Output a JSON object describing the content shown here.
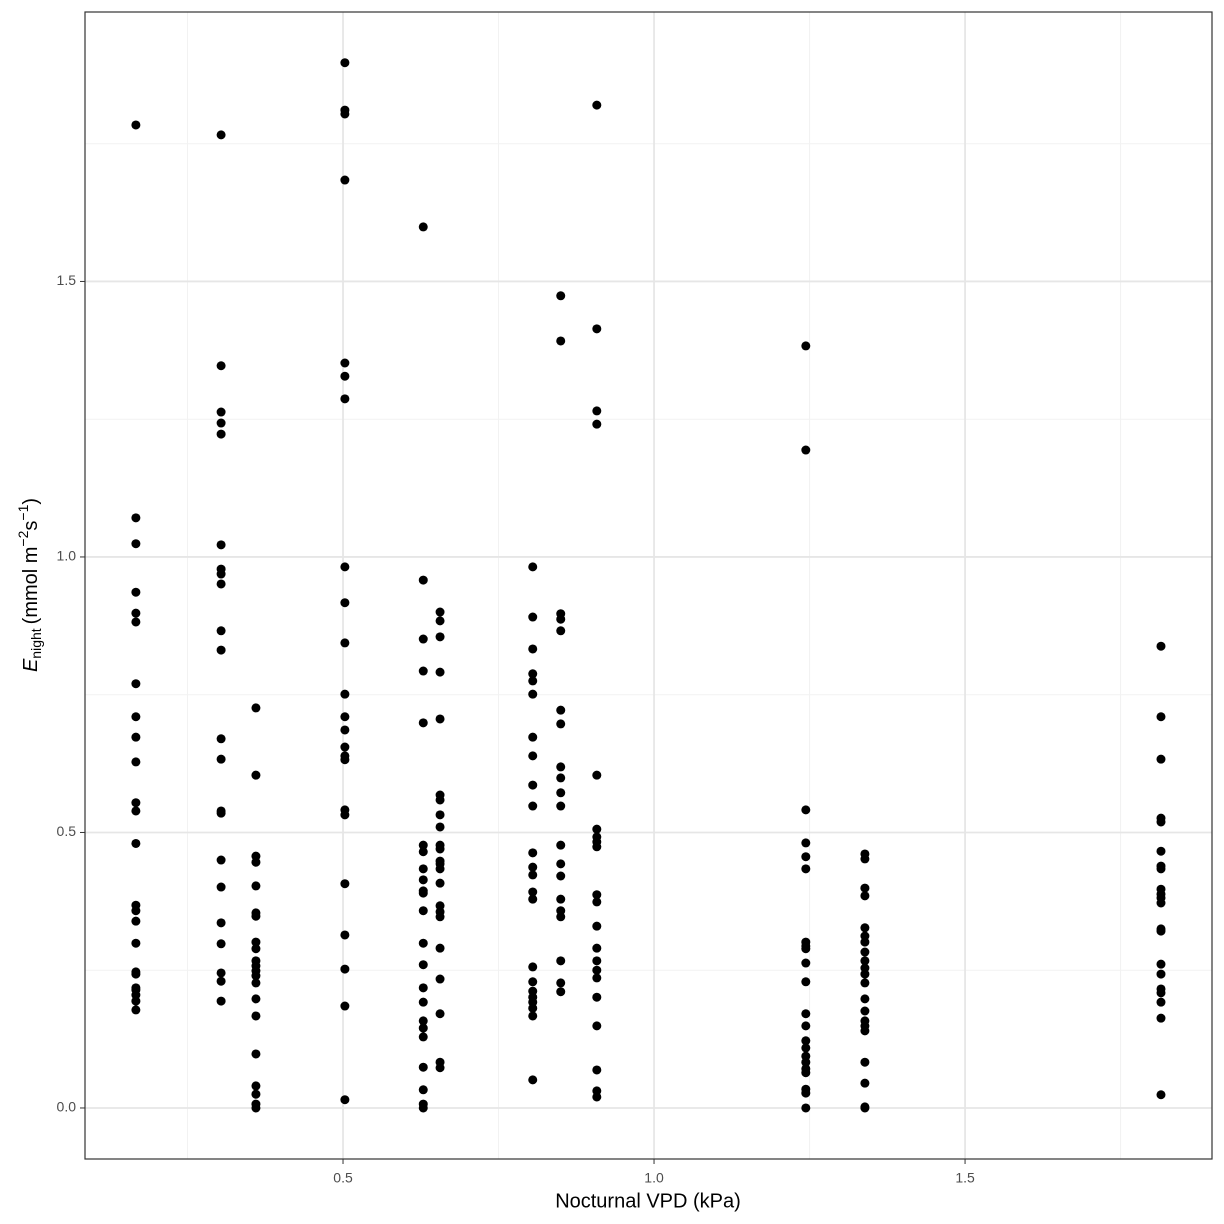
{
  "chart_data": {
    "type": "scatter",
    "x_label": "Nocturnal VPD (kPa)",
    "y_label": {
      "symbol": "E",
      "subscript": "night",
      "open": "(mmol m",
      "sup1": "−2",
      "mid": "s",
      "sup2": "−1",
      "close": ")"
    },
    "xlim": [
      0.0852,
      1.897
    ],
    "ylim": [
      -0.0926,
      1.989
    ],
    "xticks": [
      0.5,
      {
        "value": 1.0,
        "label": "1.0"
      },
      1.5
    ],
    "yticks": [
      {
        "value": 0,
        "label": "0.0"
      },
      0.5,
      {
        "value": 1.0,
        "label": "1.0"
      },
      1.5
    ],
    "minor_xticks": [
      0.25,
      0.75,
      1.25,
      1.75
    ],
    "minor_yticks": [
      0.25,
      0.75,
      1.25,
      1.75
    ],
    "grid": true,
    "color": "#000000",
    "x": [
      0.167,
      0.167,
      0.167,
      0.167,
      0.167,
      0.167,
      0.167,
      0.167,
      0.167,
      0.167,
      0.167,
      0.167,
      0.167,
      0.167,
      0.167,
      0.167,
      0.167,
      0.167,
      0.167,
      0.167,
      0.167,
      0.167,
      0.167,
      0.167,
      0.304,
      0.304,
      0.304,
      0.304,
      0.304,
      0.304,
      0.304,
      0.304,
      0.304,
      0.304,
      0.304,
      0.304,
      0.304,
      0.304,
      0.304,
      0.304,
      0.304,
      0.304,
      0.304,
      0.304,
      0.304,
      0.304,
      0.36,
      0.36,
      0.36,
      0.36,
      0.36,
      0.36,
      0.36,
      0.36,
      0.36,
      0.36,
      0.36,
      0.36,
      0.36,
      0.36,
      0.36,
      0.36,
      0.36,
      0.36,
      0.36,
      0.36,
      0.36,
      0.503,
      0.503,
      0.503,
      0.503,
      0.503,
      0.503,
      0.503,
      0.503,
      0.503,
      0.503,
      0.503,
      0.503,
      0.503,
      0.503,
      0.503,
      0.503,
      0.503,
      0.503,
      0.503,
      0.503,
      0.503,
      0.503,
      0.503,
      0.629,
      0.629,
      0.629,
      0.629,
      0.629,
      0.629,
      0.629,
      0.629,
      0.629,
      0.629,
      0.629,
      0.629,
      0.629,
      0.629,
      0.629,
      0.629,
      0.629,
      0.629,
      0.629,
      0.629,
      0.629,
      0.629,
      0.629,
      0.656,
      0.656,
      0.656,
      0.656,
      0.656,
      0.656,
      0.656,
      0.656,
      0.656,
      0.656,
      0.656,
      0.656,
      0.656,
      0.656,
      0.656,
      0.656,
      0.656,
      0.656,
      0.656,
      0.656,
      0.656,
      0.656,
      0.656,
      0.805,
      0.805,
      0.805,
      0.805,
      0.805,
      0.805,
      0.805,
      0.805,
      0.805,
      0.805,
      0.805,
      0.805,
      0.805,
      0.805,
      0.805,
      0.805,
      0.805,
      0.805,
      0.805,
      0.805,
      0.805,
      0.805,
      0.805,
      0.85,
      0.85,
      0.85,
      0.85,
      0.85,
      0.85,
      0.85,
      0.85,
      0.85,
      0.85,
      0.85,
      0.85,
      0.85,
      0.85,
      0.85,
      0.85,
      0.85,
      0.85,
      0.85,
      0.85,
      0.908,
      0.908,
      0.908,
      0.908,
      0.908,
      0.908,
      0.908,
      0.908,
      0.908,
      0.908,
      0.908,
      0.908,
      0.908,
      0.908,
      0.908,
      0.908,
      0.908,
      0.908,
      0.908,
      0.908,
      0.908,
      1.244,
      1.244,
      1.244,
      1.244,
      1.244,
      1.244,
      1.244,
      1.244,
      1.244,
      1.244,
      1.244,
      1.244,
      1.244,
      1.244,
      1.244,
      1.244,
      1.244,
      1.244,
      1.244,
      1.244,
      1.244,
      1.244,
      1.339,
      1.339,
      1.339,
      1.339,
      1.339,
      1.339,
      1.339,
      1.339,
      1.339,
      1.339,
      1.339,
      1.339,
      1.339,
      1.339,
      1.339,
      1.339,
      1.339,
      1.339,
      1.339,
      1.339,
      1.339,
      1.815,
      1.815,
      1.815,
      1.815,
      1.815,
      1.815,
      1.815,
      1.815,
      1.815,
      1.815,
      1.815,
      1.815,
      1.815,
      1.815,
      1.815,
      1.815,
      1.815,
      1.815,
      1.815,
      1.815,
      1.815
    ],
    "y": [
      1.784,
      1.071,
      1.024,
      0.936,
      0.898,
      0.882,
      0.77,
      0.71,
      0.673,
      0.628,
      0.554,
      0.539,
      0.48,
      0.368,
      0.358,
      0.339,
      0.299,
      0.247,
      0.243,
      0.218,
      0.214,
      0.205,
      0.194,
      0.178,
      1.766,
      1.347,
      1.263,
      1.243,
      1.223,
      1.022,
      0.978,
      0.969,
      0.951,
      0.866,
      0.831,
      0.67,
      0.633,
      0.539,
      0.535,
      0.45,
      0.401,
      0.336,
      0.298,
      0.245,
      0.23,
      0.194,
      0.726,
      0.604,
      0.457,
      0.446,
      0.403,
      0.354,
      0.348,
      0.301,
      0.289,
      0.267,
      0.258,
      0.249,
      0.24,
      0.227,
      0.198,
      0.167,
      0.098,
      0.04,
      0.025,
      0.007,
      0.0,
      1.897,
      1.811,
      1.804,
      1.684,
      1.352,
      1.328,
      1.287,
      0.982,
      0.917,
      0.844,
      0.751,
      0.71,
      0.686,
      0.655,
      0.639,
      0.632,
      0.541,
      0.532,
      0.407,
      0.314,
      0.252,
      0.185,
      0.015,
      1.599,
      0.958,
      0.851,
      0.793,
      0.699,
      0.477,
      0.465,
      0.434,
      0.414,
      0.394,
      0.39,
      0.358,
      0.299,
      0.26,
      0.218,
      0.192,
      0.158,
      0.145,
      0.129,
      0.074,
      0.033,
      0.007,
      0.0,
      0.9,
      0.884,
      0.855,
      0.791,
      0.706,
      0.568,
      0.559,
      0.532,
      0.51,
      0.477,
      0.47,
      0.448,
      0.443,
      0.434,
      0.408,
      0.367,
      0.356,
      0.347,
      0.29,
      0.234,
      0.171,
      0.083,
      0.073,
      0.982,
      0.891,
      0.833,
      0.788,
      0.775,
      0.751,
      0.673,
      0.639,
      0.586,
      0.548,
      0.463,
      0.437,
      0.423,
      0.392,
      0.379,
      0.256,
      0.229,
      0.212,
      0.201,
      0.192,
      0.181,
      0.167,
      0.051,
      1.474,
      1.392,
      0.897,
      0.887,
      0.866,
      0.722,
      0.697,
      0.619,
      0.599,
      0.572,
      0.548,
      0.477,
      0.443,
      0.421,
      0.379,
      0.358,
      0.347,
      0.267,
      0.227,
      0.211,
      1.82,
      1.414,
      1.265,
      1.241,
      0.604,
      0.506,
      0.492,
      0.483,
      0.474,
      0.387,
      0.374,
      0.33,
      0.29,
      0.267,
      0.25,
      0.236,
      0.201,
      0.149,
      0.069,
      0.031,
      0.02,
      1.383,
      1.194,
      0.541,
      0.481,
      0.456,
      0.434,
      0.301,
      0.294,
      0.289,
      0.263,
      0.229,
      0.171,
      0.149,
      0.122,
      0.109,
      0.094,
      0.083,
      0.071,
      0.064,
      0.034,
      0.027,
      0.0,
      0.461,
      0.452,
      0.399,
      0.385,
      0.327,
      0.312,
      0.301,
      0.283,
      0.267,
      0.254,
      0.243,
      0.227,
      0.198,
      0.176,
      0.158,
      0.149,
      0.14,
      0.083,
      0.045,
      0.002,
      0.0,
      0.838,
      0.71,
      0.633,
      0.526,
      0.519,
      0.466,
      0.439,
      0.434,
      0.397,
      0.388,
      0.381,
      0.372,
      0.325,
      0.321,
      0.261,
      0.243,
      0.216,
      0.209,
      0.192,
      0.163,
      0.024
    ]
  }
}
